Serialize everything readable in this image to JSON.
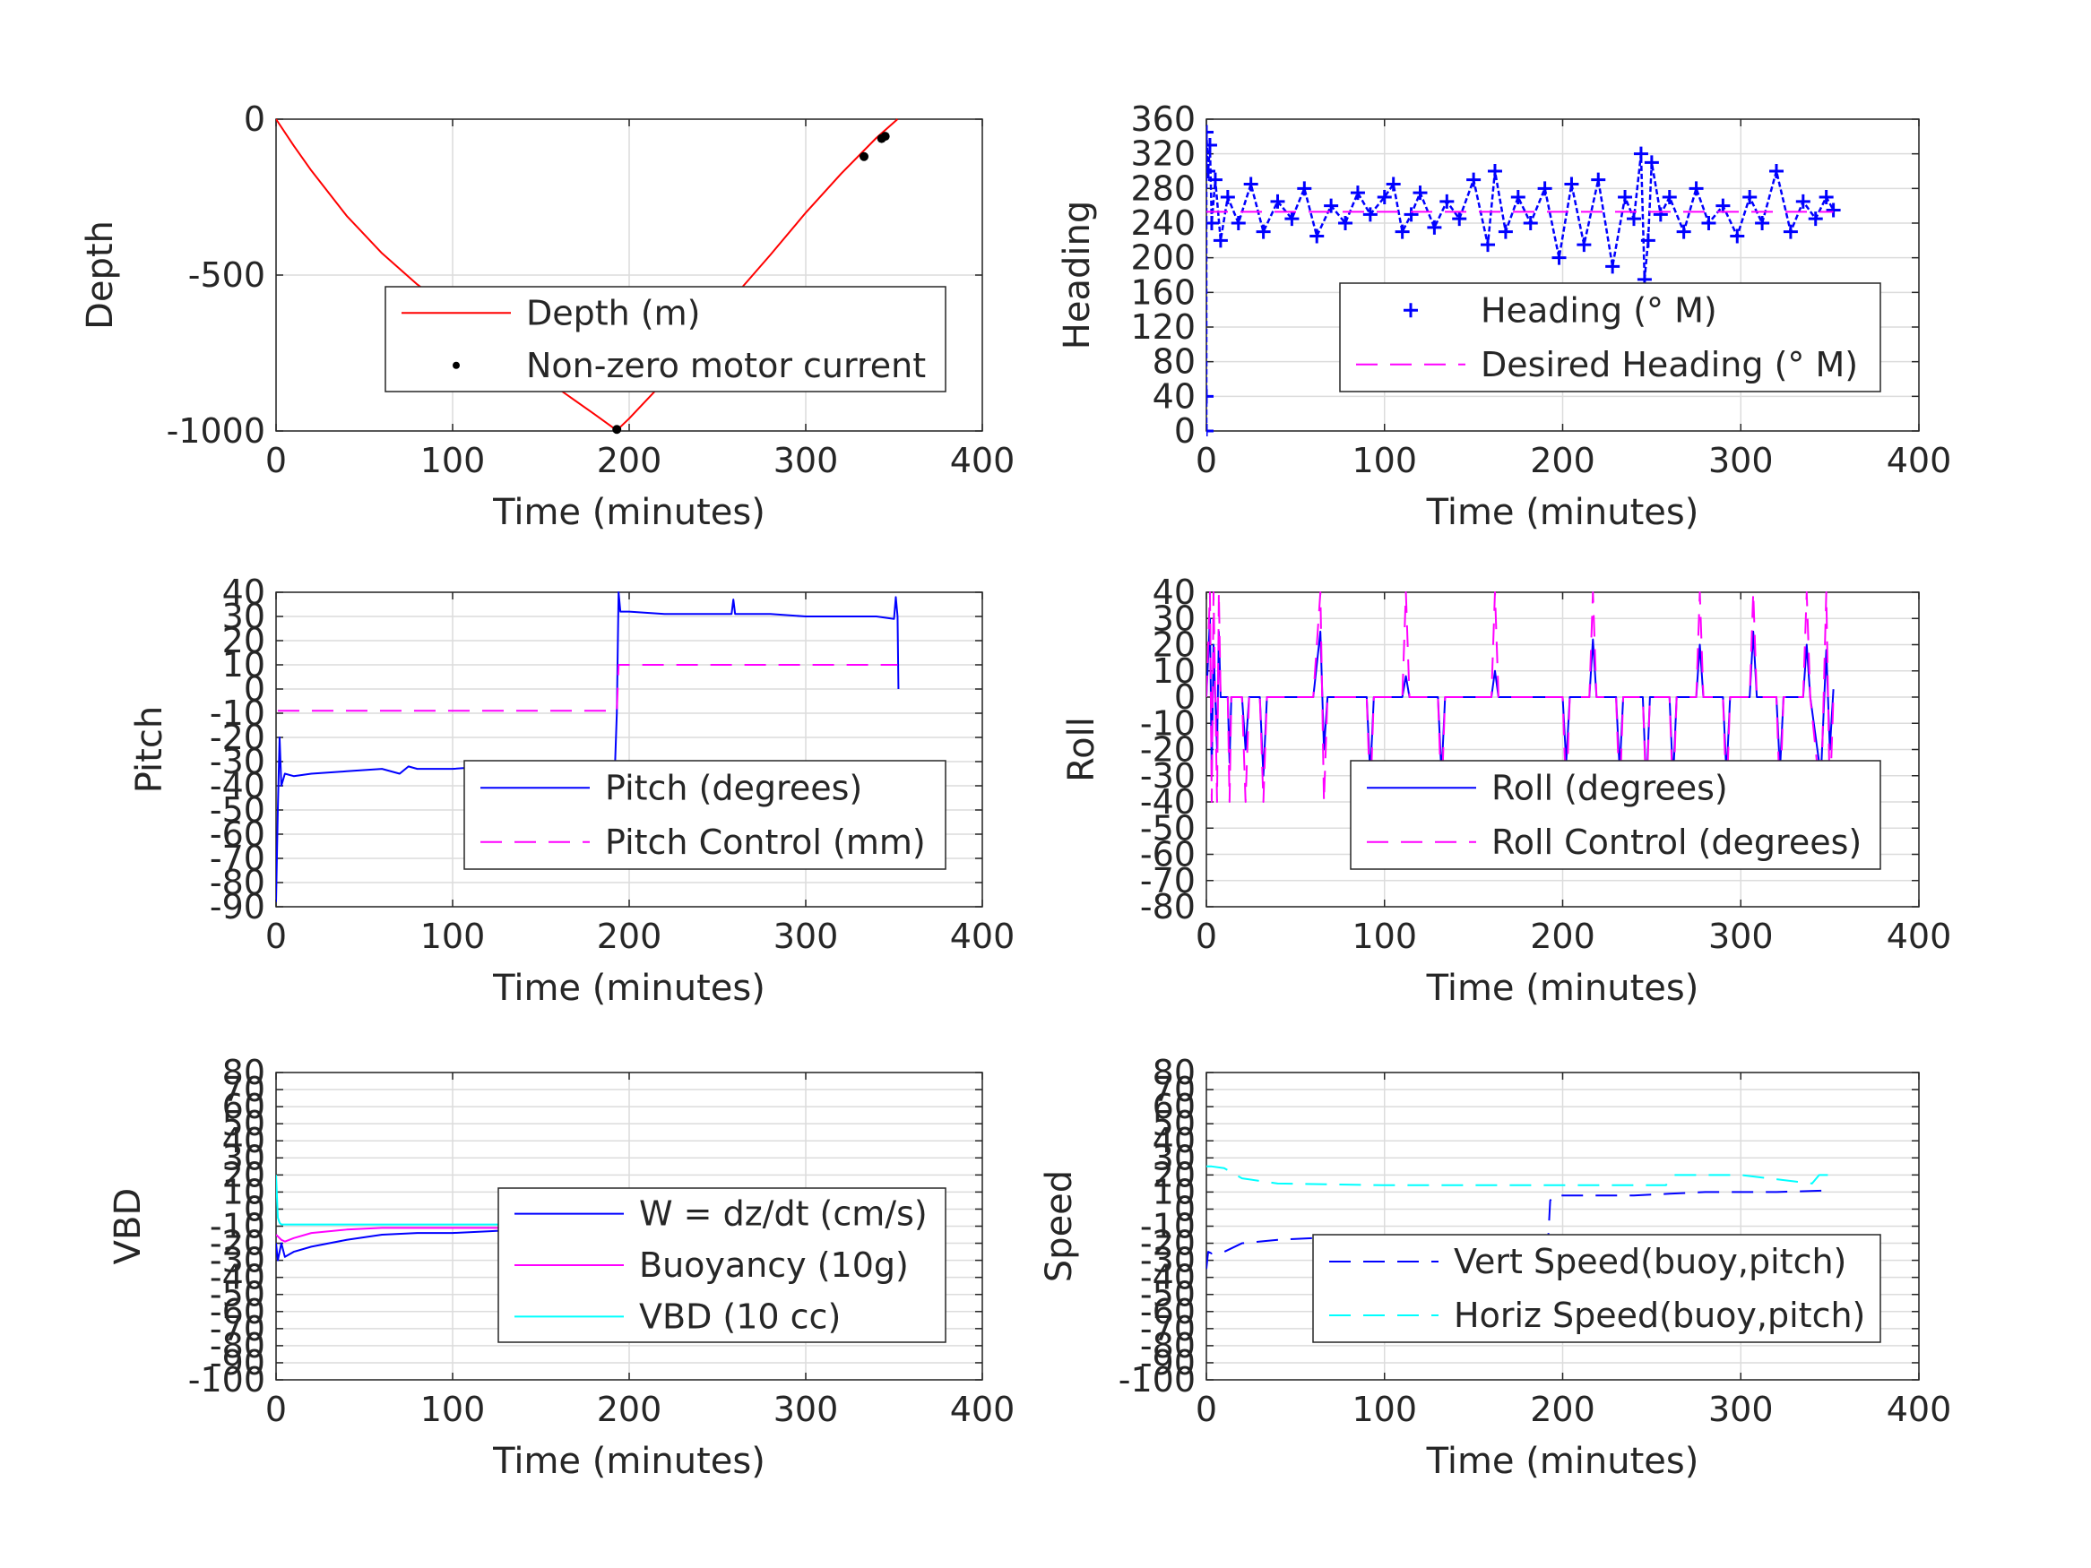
{
  "chart_data": [
    {
      "id": "depth",
      "type": "line",
      "xlabel": "Time (minutes)",
      "ylabel": "Depth",
      "xlim": [
        0,
        400
      ],
      "ylim": [
        -1000,
        0
      ],
      "xticks": [
        0,
        100,
        200,
        300,
        400
      ],
      "yticks": [
        -1000,
        -500,
        0
      ],
      "xtick_labels": [
        "0",
        "100",
        "200",
        "300",
        "400"
      ],
      "ytick_labels": [
        "-1000",
        "-500",
        "0"
      ],
      "grid": true,
      "legend_position": "center-right",
      "series": [
        {
          "name": "Depth (m)",
          "style": "solid",
          "color": "#ff0000",
          "x": [
            0,
            10,
            20,
            40,
            60,
            80,
            100,
            120,
            140,
            160,
            180,
            193,
            200,
            220,
            240,
            260,
            280,
            300,
            320,
            340,
            352
          ],
          "y": [
            0,
            -85,
            -165,
            -310,
            -430,
            -530,
            -615,
            -700,
            -785,
            -865,
            -945,
            -998,
            -960,
            -840,
            -705,
            -565,
            -435,
            -300,
            -175,
            -60,
            0
          ]
        },
        {
          "name": "Non-zero motor current",
          "style": "dots",
          "color": "#000000",
          "x": [
            193,
            259,
            333,
            343,
            345
          ],
          "y": [
            -995,
            -580,
            -120,
            -62,
            -55
          ]
        }
      ]
    },
    {
      "id": "heading",
      "type": "scatter",
      "xlabel": "Time (minutes)",
      "ylabel": "Heading",
      "xlim": [
        0,
        400
      ],
      "ylim": [
        0,
        360
      ],
      "xticks": [
        0,
        100,
        200,
        300,
        400
      ],
      "yticks": [
        0,
        40,
        80,
        120,
        160,
        200,
        240,
        280,
        320,
        360
      ],
      "xtick_labels": [
        "0",
        "100",
        "200",
        "300",
        "400"
      ],
      "ytick_labels": [
        "0",
        "40",
        "80",
        "120",
        "160",
        "200",
        "240",
        "280",
        "320",
        "360"
      ],
      "grid": true,
      "legend_position": "center-right",
      "series": [
        {
          "name": "Heading (° M)",
          "style": "plus",
          "color": "#0000ff",
          "x": [
            0,
            0,
            0,
            1,
            2,
            3,
            5,
            8,
            12,
            18,
            25,
            32,
            40,
            48,
            55,
            62,
            70,
            78,
            85,
            92,
            100,
            105,
            110,
            115,
            120,
            128,
            135,
            142,
            150,
            158,
            162,
            168,
            175,
            182,
            190,
            198,
            205,
            212,
            220,
            228,
            235,
            240,
            244,
            246,
            248,
            250,
            255,
            260,
            268,
            275,
            282,
            290,
            298,
            305,
            312,
            320,
            328,
            335,
            342,
            348,
            352
          ],
          "y": [
            0,
            40,
            345,
            300,
            330,
            240,
            290,
            220,
            270,
            240,
            285,
            230,
            265,
            245,
            280,
            225,
            260,
            240,
            275,
            250,
            270,
            285,
            230,
            250,
            275,
            235,
            265,
            245,
            290,
            215,
            300,
            230,
            270,
            240,
            280,
            200,
            285,
            215,
            290,
            190,
            270,
            245,
            320,
            175,
            220,
            310,
            250,
            270,
            230,
            280,
            240,
            260,
            225,
            270,
            240,
            300,
            230,
            265,
            245,
            270,
            255
          ]
        },
        {
          "name": "Desired Heading (° M)",
          "style": "dashed",
          "color": "#ff00ff",
          "x": [
            0,
            352
          ],
          "y": [
            253,
            253
          ]
        }
      ]
    },
    {
      "id": "pitch",
      "type": "line",
      "xlabel": "Time (minutes)",
      "ylabel": "Pitch",
      "xlim": [
        0,
        400
      ],
      "ylim": [
        -90,
        40
      ],
      "xticks": [
        0,
        100,
        200,
        300,
        400
      ],
      "yticks": [
        -90,
        -80,
        -70,
        -60,
        -50,
        -40,
        -30,
        -20,
        -10,
        0,
        10,
        20,
        30,
        40
      ],
      "xtick_labels": [
        "0",
        "100",
        "200",
        "300",
        "400"
      ],
      "ytick_labels": [
        "-90",
        "-80",
        "-70",
        "-60",
        "-50",
        "-40",
        "-30",
        "-20",
        "-10",
        "0",
        "10",
        "20",
        "30",
        "40"
      ],
      "grid": true,
      "legend_position": "center-right",
      "series": [
        {
          "name": "Pitch (degrees)",
          "style": "solid",
          "color": "#0000ff",
          "x": [
            0,
            1,
            2,
            3,
            5,
            10,
            20,
            40,
            60,
            70,
            75,
            80,
            100,
            120,
            140,
            160,
            180,
            192,
            193,
            194,
            195,
            200,
            220,
            240,
            258,
            259,
            260,
            280,
            300,
            320,
            340,
            350,
            351,
            352,
            352.5
          ],
          "y": [
            -88,
            -50,
            -20,
            -40,
            -35,
            -36,
            -35,
            -34,
            -33,
            -35,
            -32,
            -33,
            -33,
            -32,
            -32,
            -31,
            -31,
            -31,
            -10,
            40,
            32,
            32,
            31,
            31,
            31,
            37,
            31,
            31,
            30,
            30,
            30,
            29,
            38,
            30,
            0
          ]
        },
        {
          "name": "Pitch Control (mm)",
          "style": "dashed",
          "color": "#ff00ff",
          "x": [
            1,
            192,
            193,
            194,
            352
          ],
          "y": [
            -9,
            -9,
            -9,
            10,
            10
          ]
        }
      ]
    },
    {
      "id": "roll",
      "type": "line",
      "xlabel": "Time (minutes)",
      "ylabel": "Roll",
      "xlim": [
        0,
        400
      ],
      "ylim": [
        -80,
        40
      ],
      "xticks": [
        0,
        100,
        200,
        300,
        400
      ],
      "yticks": [
        -80,
        -70,
        -60,
        -50,
        -40,
        -30,
        -20,
        -10,
        0,
        10,
        20,
        30,
        40
      ],
      "xtick_labels": [
        "0",
        "100",
        "200",
        "300",
        "400"
      ],
      "ytick_labels": [
        "-80",
        "-70",
        "-60",
        "-50",
        "-40",
        "-30",
        "-20",
        "-10",
        "0",
        "10",
        "20",
        "30",
        "40"
      ],
      "grid": true,
      "legend_position": "center-right",
      "series": [
        {
          "name": "Roll (degrees)",
          "style": "solid",
          "color": "#0000ff",
          "x": [
            0,
            2,
            3,
            4,
            6,
            7,
            8,
            12,
            13,
            14,
            20,
            22,
            24,
            30,
            32,
            34,
            40,
            60,
            64,
            66,
            68,
            90,
            92,
            94,
            110,
            112,
            114,
            130,
            132,
            134,
            150,
            160,
            162,
            164,
            190,
            200,
            202,
            204,
            215,
            217,
            219,
            230,
            232,
            234,
            245,
            247,
            249,
            260,
            262,
            264,
            275,
            277,
            279,
            290,
            292,
            294,
            305,
            307,
            309,
            320,
            322,
            324,
            335,
            337,
            339,
            345,
            348,
            350,
            352
          ],
          "y": [
            0,
            30,
            -30,
            20,
            -20,
            25,
            0,
            0,
            -25,
            0,
            0,
            -20,
            0,
            0,
            -30,
            0,
            0,
            0,
            25,
            -20,
            0,
            0,
            -30,
            0,
            0,
            8,
            0,
            0,
            -30,
            0,
            0,
            0,
            10,
            0,
            0,
            0,
            -25,
            0,
            0,
            22,
            0,
            0,
            -28,
            0,
            0,
            -35,
            0,
            0,
            -32,
            0,
            0,
            20,
            0,
            0,
            -30,
            0,
            0,
            25,
            0,
            0,
            -28,
            0,
            0,
            20,
            0,
            -30,
            18,
            -20,
            3
          ]
        },
        {
          "name": "Roll Control (degrees)",
          "style": "dashed",
          "color": "#ff00ff",
          "x": [
            0,
            2,
            3,
            4,
            6,
            7,
            8,
            12,
            13,
            14,
            20,
            22,
            24,
            30,
            32,
            34,
            40,
            60,
            64,
            66,
            68,
            90,
            92,
            94,
            110,
            112,
            114,
            130,
            132,
            134,
            150,
            160,
            162,
            164,
            190,
            200,
            202,
            204,
            215,
            217,
            219,
            230,
            232,
            234,
            245,
            247,
            249,
            260,
            262,
            264,
            275,
            277,
            279,
            290,
            292,
            294,
            305,
            307,
            309,
            320,
            322,
            324,
            335,
            337,
            339,
            345,
            348,
            350,
            352
          ],
          "y": [
            0,
            40,
            -40,
            40,
            -40,
            40,
            0,
            0,
            -40,
            0,
            0,
            -40,
            0,
            0,
            -40,
            0,
            0,
            0,
            40,
            -40,
            0,
            0,
            -40,
            0,
            0,
            40,
            0,
            0,
            -40,
            0,
            0,
            0,
            40,
            0,
            0,
            0,
            -40,
            0,
            0,
            40,
            0,
            0,
            -40,
            0,
            0,
            -40,
            0,
            0,
            -40,
            0,
            0,
            40,
            0,
            0,
            -40,
            0,
            0,
            40,
            0,
            0,
            -40,
            0,
            0,
            40,
            0,
            -40,
            40,
            -40,
            0
          ]
        }
      ]
    },
    {
      "id": "vbd",
      "type": "line",
      "xlabel": "Time (minutes)",
      "ylabel": "VBD",
      "xlim": [
        0,
        400
      ],
      "ylim": [
        -100,
        80
      ],
      "xticks": [
        0,
        100,
        200,
        300,
        400
      ],
      "yticks": [
        -100,
        -90,
        -80,
        -70,
        -60,
        -50,
        -40,
        -30,
        -20,
        -10,
        0,
        10,
        20,
        30,
        40,
        50,
        60,
        70,
        80
      ],
      "xtick_labels": [
        "0",
        "100",
        "200",
        "300",
        "400"
      ],
      "ytick_labels": [
        "-100",
        "-90",
        "-80",
        "-70",
        "-60",
        "-50",
        "-40",
        "-30",
        "-20",
        "-10",
        "0",
        "10",
        "20",
        "30",
        "40",
        "50",
        "60",
        "70",
        "80"
      ],
      "grid": true,
      "legend_position": "center-right",
      "series": [
        {
          "name": "W = dz/dt (cm/s)",
          "style": "solid",
          "color": "#0000ff",
          "x": [
            0,
            1,
            3,
            5,
            10,
            20,
            40,
            60,
            80,
            100,
            120,
            140,
            160,
            180,
            192,
            193,
            195,
            200,
            220,
            240,
            260,
            280,
            300,
            320,
            340,
            352
          ],
          "y": [
            -20,
            -30,
            -20,
            -28,
            -25,
            -22,
            -18,
            -15,
            -14,
            -14,
            -13,
            -12,
            -12,
            -12,
            -10,
            5,
            12,
            12,
            11,
            10,
            10,
            11,
            10,
            10,
            9,
            10
          ]
        },
        {
          "name": "Buoyancy (10g)",
          "style": "solid",
          "color": "#ff00ff",
          "x": [
            0,
            3,
            5,
            10,
            20,
            40,
            60,
            100,
            140,
            192,
            193,
            200,
            258,
            260,
            300,
            340,
            352
          ],
          "y": [
            -15,
            -18,
            -19,
            -17,
            -14,
            -12,
            -11,
            -11,
            -11,
            -11,
            3,
            3,
            3,
            4,
            5,
            5,
            6
          ]
        },
        {
          "name": "VBD (10 cc)",
          "style": "solid",
          "color": "#00ffff",
          "x": [
            0,
            1,
            2,
            3,
            192,
            193,
            258,
            260,
            352
          ],
          "y": [
            20,
            -5,
            -8,
            -9,
            -9,
            2,
            2,
            8,
            8
          ]
        }
      ]
    },
    {
      "id": "speed",
      "type": "line",
      "xlabel": "Time (minutes)",
      "ylabel": "Speed",
      "xlim": [
        0,
        400
      ],
      "ylim": [
        -100,
        80
      ],
      "xticks": [
        0,
        100,
        200,
        300,
        400
      ],
      "yticks": [
        -100,
        -90,
        -80,
        -70,
        -60,
        -50,
        -40,
        -30,
        -20,
        -10,
        0,
        10,
        20,
        30,
        40,
        50,
        60,
        70,
        80
      ],
      "xtick_labels": [
        "0",
        "100",
        "200",
        "300",
        "400"
      ],
      "ytick_labels": [
        "-100",
        "-90",
        "-80",
        "-70",
        "-60",
        "-50",
        "-40",
        "-30",
        "-20",
        "-10",
        "0",
        "10",
        "20",
        "30",
        "40",
        "50",
        "60",
        "70",
        "80"
      ],
      "grid": true,
      "legend_position": "center-right",
      "series": [
        {
          "name": "Vert Speed(buoy,pitch)",
          "style": "dashed",
          "color": "#0000ff",
          "x": [
            0,
            1,
            3,
            10,
            20,
            40,
            60,
            100,
            140,
            190,
            192,
            193,
            195,
            200,
            240,
            260,
            280,
            300,
            320,
            352
          ],
          "y": [
            -35,
            -25,
            -26,
            -25,
            -20,
            -18,
            -17,
            -16,
            -16,
            -16,
            -15,
            5,
            8,
            8,
            8,
            9,
            10,
            10,
            10,
            11
          ]
        },
        {
          "name": "Horiz Speed(buoy,pitch)",
          "style": "dashed",
          "color": "#00ffff",
          "x": [
            0,
            3,
            10,
            20,
            40,
            100,
            190,
            195,
            250,
            258,
            262,
            300,
            340,
            344,
            352
          ],
          "y": [
            25,
            25,
            24,
            18,
            15,
            14,
            14,
            14,
            14,
            14,
            20,
            20,
            15,
            20,
            20
          ]
        }
      ]
    }
  ]
}
